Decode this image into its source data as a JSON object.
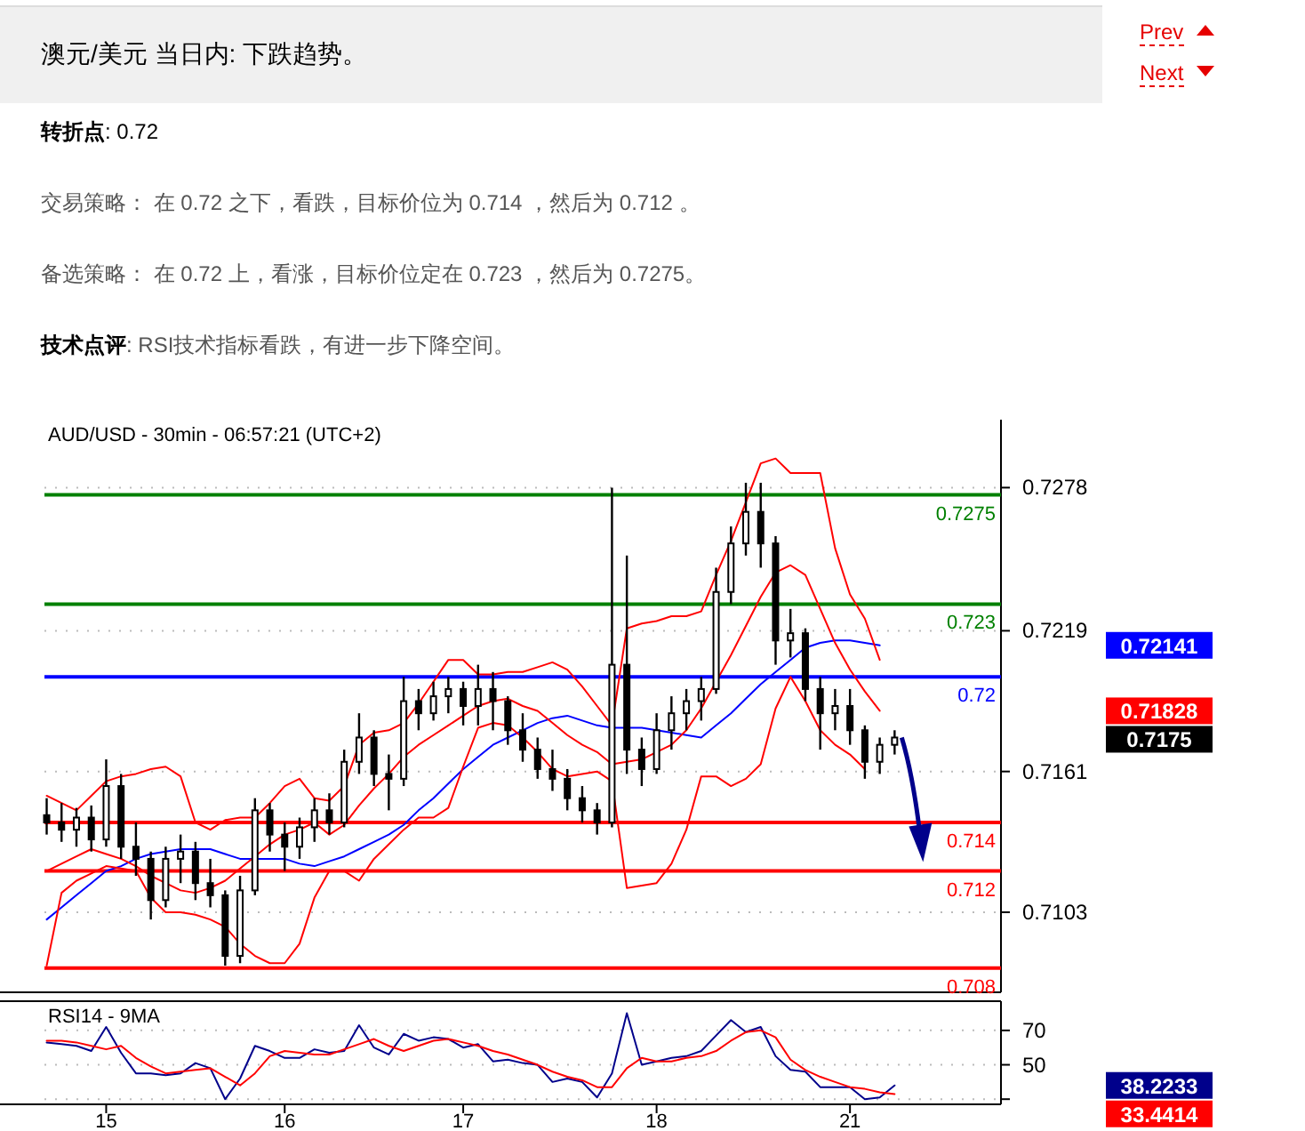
{
  "chart_data": [
    {
      "type": "other",
      "title": "澳元/美元 当日内: 下跌趋势。",
      "annotations": [
        "转折点: 0.72",
        "交易策略： 在 0.72 之下，看跌，目标价位为 0.714 ，然后为 0.712 。",
        "备选策略： 在 0.72 上，看涨，目标价位定在 0.723 ，然后为 0.7275。",
        "技术点评: RSI技术指标看跌，有进一步下降空间。",
        "Prev",
        "Next"
      ]
    },
    {
      "type": "candlestick",
      "title": "AUD/USD - 30min - 06:57:21 (UTC+2)",
      "color": "#000000",
      "categories": [
        null,
        null,
        null,
        null,
        null,
        null,
        null,
        null,
        null,
        null,
        null,
        null,
        null,
        null,
        null,
        null,
        null,
        null,
        null,
        null,
        null,
        null,
        null,
        null,
        null,
        null,
        null,
        null,
        null,
        null,
        null,
        null,
        null,
        null,
        null,
        null,
        null,
        null,
        null,
        null,
        null,
        null,
        null,
        null,
        null,
        null,
        null,
        null,
        null,
        null,
        null,
        null,
        null,
        null,
        null,
        null,
        null,
        null
      ],
      "ohlc": [
        [
          0.7143,
          0.715,
          0.7135,
          0.714
        ],
        [
          0.714,
          0.7148,
          0.7132,
          0.7137
        ],
        [
          0.7137,
          0.7146,
          0.713,
          0.7142
        ],
        [
          0.7142,
          0.7147,
          0.7128,
          0.7133
        ],
        [
          0.7133,
          0.7166,
          0.713,
          0.7155
        ],
        [
          0.7155,
          0.716,
          0.7125,
          0.713
        ],
        [
          0.713,
          0.714,
          0.7118,
          0.7125
        ],
        [
          0.7125,
          0.7128,
          0.71,
          0.7108
        ],
        [
          0.7108,
          0.713,
          0.7105,
          0.7125
        ],
        [
          0.7125,
          0.7135,
          0.7115,
          0.7128
        ],
        [
          0.7128,
          0.7132,
          0.7108,
          0.7115
        ],
        [
          0.7115,
          0.7125,
          0.7105,
          0.711
        ],
        [
          0.711,
          0.7112,
          0.7081,
          0.7085
        ],
        [
          0.7085,
          0.7118,
          0.7082,
          0.7112
        ],
        [
          0.7112,
          0.715,
          0.711,
          0.7145
        ],
        [
          0.7145,
          0.7148,
          0.7128,
          0.7135
        ],
        [
          0.7135,
          0.714,
          0.712,
          0.713
        ],
        [
          0.713,
          0.7142,
          0.7125,
          0.7138
        ],
        [
          0.7138,
          0.715,
          0.7132,
          0.7145
        ],
        [
          0.7145,
          0.7152,
          0.7135,
          0.714
        ],
        [
          0.714,
          0.717,
          0.7138,
          0.7165
        ],
        [
          0.7165,
          0.7185,
          0.716,
          0.7175
        ],
        [
          0.7175,
          0.7178,
          0.7155,
          0.716
        ],
        [
          0.716,
          0.7168,
          0.7145,
          0.7158
        ],
        [
          0.7158,
          0.72,
          0.7155,
          0.719
        ],
        [
          0.719,
          0.7195,
          0.7178,
          0.7185
        ],
        [
          0.7185,
          0.7198,
          0.7182,
          0.7192
        ],
        [
          0.7192,
          0.72,
          0.7185,
          0.7195
        ],
        [
          0.7195,
          0.7198,
          0.718,
          0.7188
        ],
        [
          0.7188,
          0.7205,
          0.718,
          0.7195
        ],
        [
          0.7195,
          0.7202,
          0.7178,
          0.719
        ],
        [
          0.719,
          0.7192,
          0.7172,
          0.7178
        ],
        [
          0.7178,
          0.7185,
          0.7165,
          0.717
        ],
        [
          0.717,
          0.7175,
          0.7158,
          0.7162
        ],
        [
          0.7162,
          0.717,
          0.7153,
          0.7158
        ],
        [
          0.7158,
          0.7162,
          0.7145,
          0.715
        ],
        [
          0.715,
          0.7155,
          0.714,
          0.7145
        ],
        [
          0.7145,
          0.7148,
          0.7135,
          0.714
        ],
        [
          0.714,
          0.7278,
          0.7138,
          0.7205
        ],
        [
          0.7205,
          0.725,
          0.716,
          0.717
        ],
        [
          0.717,
          0.7175,
          0.7155,
          0.7162
        ],
        [
          0.7162,
          0.7185,
          0.716,
          0.7178
        ],
        [
          0.7178,
          0.7192,
          0.717,
          0.7185
        ],
        [
          0.7185,
          0.7195,
          0.7178,
          0.719
        ],
        [
          0.719,
          0.72,
          0.7182,
          0.7195
        ],
        [
          0.7195,
          0.7245,
          0.7193,
          0.7235
        ],
        [
          0.7235,
          0.7262,
          0.723,
          0.7255
        ],
        [
          0.7255,
          0.728,
          0.725,
          0.7268
        ],
        [
          0.7268,
          0.728,
          0.7245,
          0.7255
        ],
        [
          0.7255,
          0.7258,
          0.7205,
          0.7215
        ],
        [
          0.7215,
          0.7228,
          0.7208,
          0.7218
        ],
        [
          0.7218,
          0.722,
          0.719,
          0.7195
        ],
        [
          0.7195,
          0.72,
          0.717,
          0.7185
        ],
        [
          0.7185,
          0.7195,
          0.7178,
          0.7188
        ],
        [
          0.7188,
          0.7195,
          0.7172,
          0.7178
        ],
        [
          0.7178,
          0.718,
          0.7158,
          0.7165
        ],
        [
          0.7165,
          0.7175,
          0.716,
          0.7172
        ],
        [
          0.7172,
          0.7178,
          0.7168,
          0.7175
        ]
      ],
      "series": [
        {
          "type": "line",
          "color": "#0000ff",
          "values": [
            0.71,
            0.7105,
            0.711,
            0.7115,
            0.712,
            0.7122,
            0.7125,
            0.7127,
            0.7128,
            0.7129,
            0.7129,
            0.7129,
            0.7127,
            0.7125,
            0.7125,
            0.7125,
            0.7125,
            0.7123,
            0.7122,
            0.7124,
            0.7126,
            0.7129,
            0.7132,
            0.7135,
            0.7139,
            0.7145,
            0.715,
            0.7156,
            0.7162,
            0.7167,
            0.7172,
            0.7175,
            0.7178,
            0.7181,
            0.7183,
            0.7184,
            0.7182,
            0.718,
            0.7179,
            0.7179,
            0.7179,
            0.7178,
            0.7177,
            0.7176,
            0.7175,
            0.718,
            0.7185,
            0.7191,
            0.7197,
            0.7202,
            0.7207,
            0.7212,
            0.7214,
            0.7215,
            0.7215,
            0.7214,
            0.7213,
            null
          ]
        },
        {
          "type": "line",
          "color": "#ff0000",
          "values": [
            0.712,
            0.7123,
            0.7126,
            0.7129,
            0.7127,
            0.7125,
            0.7122,
            0.7118,
            0.7115,
            0.7112,
            0.7111,
            0.7113,
            0.7116,
            0.7121,
            0.7126,
            0.7131,
            0.7135,
            0.7137,
            0.714,
            0.7135,
            0.7139,
            0.7147,
            0.7154,
            0.716,
            0.7167,
            0.7172,
            0.7176,
            0.718,
            0.7184,
            0.7188,
            0.719,
            0.7191,
            0.7188,
            0.7186,
            0.7181,
            0.7176,
            0.7172,
            0.7169,
            0.7164,
            0.7165,
            0.7166,
            0.7169,
            0.7172,
            0.7178,
            0.7187,
            0.7198,
            0.7209,
            0.7221,
            0.7233,
            0.7243,
            0.7246,
            0.7242,
            0.7228,
            0.7214,
            0.7203,
            0.7194,
            0.7186,
            null
          ]
        },
        {
          "type": "line",
          "color": "#ff0000",
          "values": [
            0.7151,
            0.7148,
            0.7145,
            0.7151,
            0.7157,
            0.7159,
            0.716,
            0.7162,
            0.7163,
            0.7159,
            0.714,
            0.7137,
            0.7141,
            0.7142,
            0.7142,
            0.7148,
            0.7155,
            0.7158,
            0.715,
            0.7149,
            0.7155,
            0.7172,
            0.7177,
            0.7178,
            0.7181,
            0.7189,
            0.7198,
            0.7207,
            0.7207,
            0.7201,
            0.7201,
            0.7202,
            0.7202,
            0.7204,
            0.7206,
            0.7203,
            0.7196,
            0.7188,
            0.718,
            0.722,
            0.7222,
            0.7223,
            0.7225,
            0.7225,
            0.7227,
            0.7242,
            0.7256,
            0.7272,
            0.7288,
            0.729,
            0.7284,
            0.7284,
            0.7284,
            0.7253,
            0.7234,
            0.7224,
            0.7207,
            null
          ]
        },
        {
          "type": "line",
          "color": "#ff0000",
          "values": [
            0.7081,
            0.7111,
            0.7116,
            0.7119,
            0.7122,
            0.7121,
            0.712,
            0.7109,
            0.7103,
            0.7103,
            0.7102,
            0.71,
            0.7097,
            0.709,
            0.7085,
            0.7082,
            0.7082,
            0.709,
            0.7109,
            0.712,
            0.712,
            0.7116,
            0.7125,
            0.7131,
            0.7137,
            0.7142,
            0.7142,
            0.7146,
            0.7163,
            0.7179,
            0.7181,
            0.718,
            0.7175,
            0.7169,
            0.7162,
            0.7159,
            0.716,
            0.7161,
            0.7157,
            0.7113,
            0.7114,
            0.7115,
            0.7123,
            0.7137,
            0.7159,
            0.7159,
            0.7155,
            0.7158,
            0.7164,
            0.7187,
            0.72,
            0.719,
            0.7178,
            0.7172,
            0.7168,
            0.7162,
            null,
            null
          ]
        }
      ],
      "ref_lines": [
        {
          "axis": "y",
          "value": 0.7275,
          "label": "0.7275",
          "color": "#008000"
        },
        {
          "axis": "y",
          "value": 0.723,
          "label": "0.723",
          "color": "#008000"
        },
        {
          "axis": "y",
          "value": 0.72,
          "label": "0.72",
          "color": "#0000ff"
        },
        {
          "axis": "y",
          "value": 0.714,
          "label": "0.714",
          "color": "#ff0000"
        },
        {
          "axis": "y",
          "value": 0.712,
          "label": "0.712",
          "color": "#ff0000"
        },
        {
          "axis": "y",
          "value": 0.708,
          "label": "0.708",
          "color": "#ff0000"
        }
      ],
      "annotations": [
        "0.72141",
        "0.71828",
        "0.7175"
      ],
      "ylim": [
        0.707,
        0.7306
      ],
      "yticks": [
        0.7278,
        0.7219,
        0.7161,
        0.7103
      ],
      "grid": "y"
    },
    {
      "type": "line",
      "title": "RSI14 - 9MA",
      "categories": [
        null,
        null,
        null,
        null,
        "15",
        null,
        null,
        null,
        null,
        null,
        null,
        null,
        null,
        null,
        null,
        null,
        "16",
        null,
        null,
        null,
        null,
        null,
        null,
        null,
        null,
        null,
        null,
        null,
        "17",
        null,
        null,
        null,
        null,
        null,
        null,
        null,
        null,
        null,
        null,
        null,
        null,
        "18",
        null,
        null,
        null,
        null,
        null,
        null,
        null,
        null,
        null,
        null,
        null,
        null,
        "21",
        null,
        null,
        null
      ],
      "series": [
        {
          "color": "#00008b",
          "values": [
            63,
            62,
            61,
            58,
            72,
            57,
            45,
            45,
            44,
            45,
            51,
            48,
            30,
            42,
            61,
            58,
            54,
            54,
            59,
            57,
            58,
            73,
            60,
            56,
            68,
            64,
            66,
            65,
            60,
            62,
            52,
            53,
            51,
            50,
            40,
            42,
            40,
            31,
            45,
            80,
            50,
            52,
            54,
            55,
            58,
            67,
            76,
            69,
            72,
            55,
            47,
            46,
            37,
            37,
            37,
            30,
            31,
            38
          ]
        },
        {
          "color": "#ff0000",
          "values": [
            64,
            64,
            63,
            61,
            59,
            61,
            54,
            49,
            45,
            46,
            47,
            48,
            43,
            38,
            45,
            55,
            58,
            57,
            56,
            56,
            59,
            62,
            65,
            61,
            58,
            61,
            64,
            65,
            63,
            61,
            58,
            56,
            53,
            50,
            46,
            43,
            41,
            37,
            37,
            48,
            54,
            52,
            52,
            54,
            55,
            58,
            64,
            69,
            70,
            66,
            53,
            47,
            43,
            40,
            37,
            36,
            34,
            33
          ]
        }
      ],
      "annotations": [
        "38.2233",
        "33.4414"
      ],
      "ylim": [
        27,
        87
      ],
      "yticks": [
        70,
        50,
        {
          "value": 30,
          "label": null
        }
      ],
      "grid": "y"
    }
  ]
}
